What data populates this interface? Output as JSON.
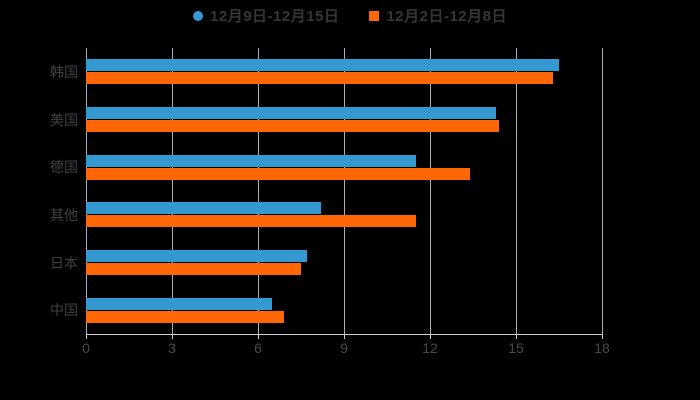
{
  "chart_data": {
    "type": "bar",
    "orientation": "horizontal",
    "title": "",
    "xlabel": "",
    "ylabel": "",
    "background_color": "#000000",
    "grid": true,
    "gridline_color": "#c9cdd3",
    "legend_position": "top",
    "xlim": [
      0,
      18
    ],
    "xticks": [
      "0",
      "3",
      "6",
      "9",
      "12",
      "15",
      "18"
    ],
    "categories": [
      "韩国",
      "美国",
      "德国",
      "其他",
      "日本",
      "中国"
    ],
    "series": [
      {
        "name": "12月9日-12月15日",
        "color": "#3498d1",
        "marker": "circle",
        "values": [
          16.5,
          14.3,
          11.5,
          8.2,
          7.7,
          6.5
        ]
      },
      {
        "name": "12月2日-12月8日",
        "color": "#ff6605",
        "marker": "square",
        "values": [
          16.3,
          14.4,
          13.4,
          11.5,
          7.5,
          6.9
        ]
      }
    ]
  }
}
